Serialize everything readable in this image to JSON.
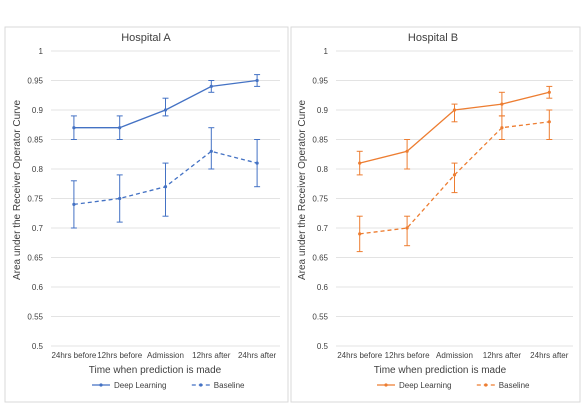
{
  "chart_data": [
    {
      "type": "line",
      "title": "Hospital A",
      "xlabel": "Time when prediction is made",
      "ylabel": "Area under the Receiver Operator Curve",
      "ylim": [
        0.5,
        1
      ],
      "yticks": [
        "0.5",
        "0.55",
        "0.6",
        "0.65",
        "0.7",
        "0.75",
        "0.8",
        "0.85",
        "0.9",
        "0.95",
        "1"
      ],
      "categories": [
        "24hrs before",
        "12hrs before",
        "Admission",
        "12hrs after",
        "24hrs after"
      ],
      "color": "#4472c4",
      "grid": true,
      "legend": "bottom",
      "series": [
        {
          "name": "Deep Learning",
          "style": "solid",
          "values": [
            0.87,
            0.87,
            0.9,
            0.94,
            0.95
          ],
          "err_low": [
            0.85,
            0.85,
            0.89,
            0.93,
            0.94
          ],
          "err_high": [
            0.89,
            0.89,
            0.92,
            0.95,
            0.96
          ]
        },
        {
          "name": "Baseline",
          "style": "dashed",
          "values": [
            0.74,
            0.75,
            0.77,
            0.83,
            0.81
          ],
          "err_low": [
            0.7,
            0.71,
            0.72,
            0.8,
            0.77
          ],
          "err_high": [
            0.78,
            0.79,
            0.81,
            0.87,
            0.85
          ]
        }
      ]
    },
    {
      "type": "line",
      "title": "Hospital B",
      "xlabel": "Time when prediction is made",
      "ylabel": "Area under the Receiver Operator Curve",
      "ylim": [
        0.5,
        1
      ],
      "yticks": [
        "0.5",
        "0.55",
        "0.6",
        "0.65",
        "0.7",
        "0.75",
        "0.8",
        "0.85",
        "0.9",
        "0.95",
        "1"
      ],
      "categories": [
        "24hrs before",
        "12hrs before",
        "Admission",
        "12hrs after",
        "24hrs after"
      ],
      "color": "#ed7d31",
      "grid": true,
      "legend": "bottom",
      "series": [
        {
          "name": "Deep Learning",
          "style": "solid",
          "values": [
            0.81,
            0.83,
            0.9,
            0.91,
            0.93
          ],
          "err_low": [
            0.79,
            0.8,
            0.88,
            0.89,
            0.92
          ],
          "err_high": [
            0.83,
            0.85,
            0.91,
            0.93,
            0.94
          ]
        },
        {
          "name": "Baseline",
          "style": "dashed",
          "values": [
            0.69,
            0.7,
            0.79,
            0.87,
            0.88
          ],
          "err_low": [
            0.66,
            0.67,
            0.76,
            0.85,
            0.85
          ],
          "err_high": [
            0.72,
            0.72,
            0.81,
            0.89,
            0.9
          ]
        }
      ]
    }
  ]
}
